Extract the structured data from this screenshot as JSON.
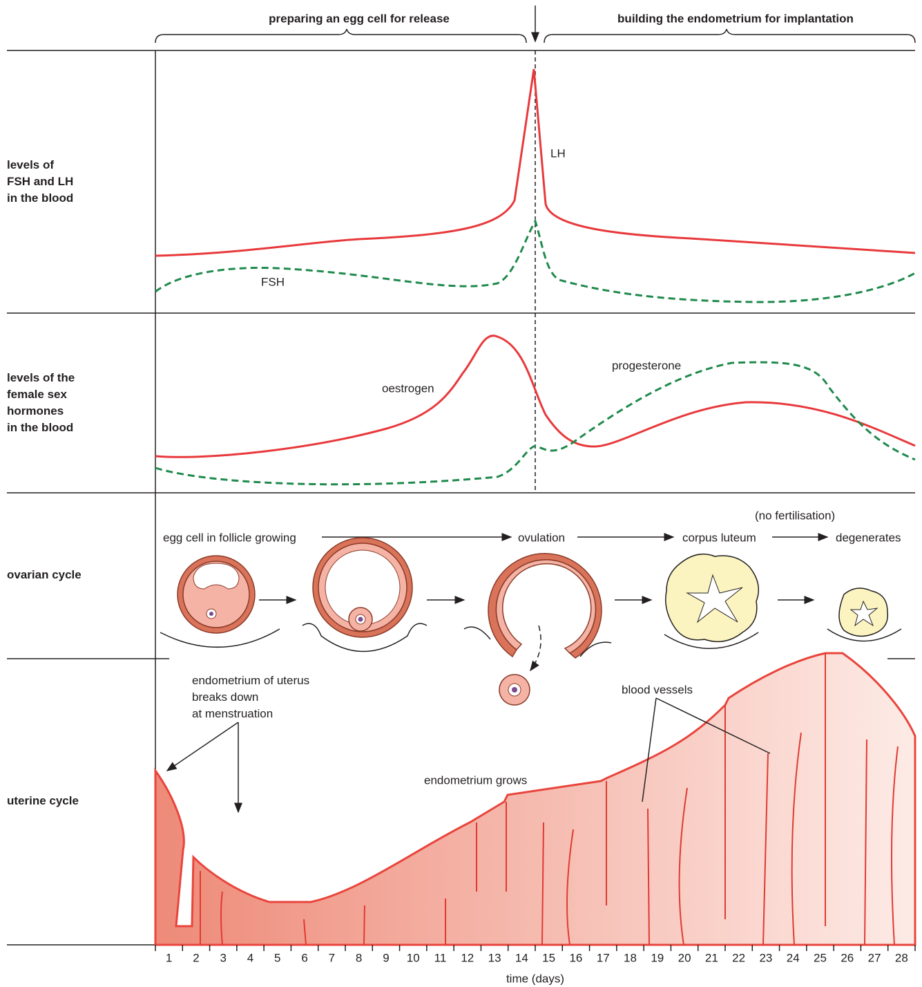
{
  "header": {
    "phase_1": "preparing an egg cell for release",
    "phase_2": "building the endometrium for implantation"
  },
  "rows": [
    {
      "lines": [
        "levels of",
        "FSH and LH",
        "in the blood"
      ]
    },
    {
      "lines": [
        "levels of the",
        "female sex",
        "hormones",
        "in the blood"
      ]
    },
    {
      "lines": [
        "ovarian cycle"
      ]
    },
    {
      "lines": [
        "uterine cycle"
      ]
    }
  ],
  "pituitary": {
    "lh": "LH",
    "fsh": "FSH"
  },
  "ovarian_hormones": {
    "oestrogen": "oestrogen",
    "progesterone": "progesterone"
  },
  "ovarian": {
    "steps": [
      "egg cell in follicle growing",
      "ovulation",
      "corpus luteum",
      "degenerates"
    ],
    "note": "(no fertilisation)"
  },
  "uterine": {
    "menstruation": [
      "endometrium of uterus",
      "breaks down",
      "at menstruation"
    ],
    "grows": "endometrium grows",
    "vessels": "blood vessels"
  },
  "axis": {
    "days": [
      1,
      2,
      3,
      4,
      5,
      6,
      7,
      8,
      9,
      10,
      11,
      12,
      13,
      14,
      15,
      16,
      17,
      18,
      19,
      20,
      21,
      22,
      23,
      24,
      25,
      26,
      27,
      28
    ],
    "label": "time (days)"
  }
}
